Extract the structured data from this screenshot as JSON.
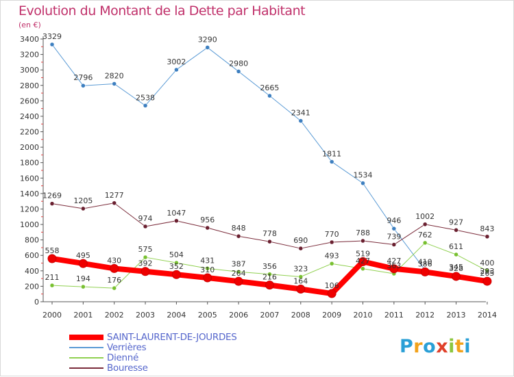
{
  "title": "Evolution du Montant de la Dette par Habitant",
  "unit_label": "(en €)",
  "logo": {
    "letters": [
      "P",
      "r",
      "o",
      "x",
      "i",
      "t",
      "i"
    ],
    "colors": [
      "#2a9fd6",
      "#f2a21b",
      "#2a9fd6",
      "#e0402a",
      "#8cc63f",
      "#f2a21b",
      "#2a9fd6"
    ]
  },
  "chart_data": {
    "type": "line",
    "title": "Evolution du Montant de la Dette par Habitant",
    "ylabel": "(en €)",
    "xlabel": "",
    "ylim": [
      0,
      3400
    ],
    "ytick_step": 200,
    "grid": false,
    "legend_position": "bottom-left",
    "x": [
      "2000",
      "2001",
      "2002",
      "2003",
      "2004",
      "2005",
      "2006",
      "2007",
      "2008",
      "2009",
      "2010",
      "2011",
      "2012",
      "2013",
      "2014"
    ],
    "series": [
      {
        "name": "Verrières",
        "color": "#5b9bd5",
        "marker": "#3d7fc0",
        "width": 1,
        "values": [
          3329,
          2796,
          2820,
          2538,
          3002,
          3290,
          2980,
          2665,
          2341,
          1811,
          1534,
          946,
          410,
          345,
          293
        ]
      },
      {
        "name": "Dienné",
        "color": "#90d050",
        "marker": "#78c030",
        "width": 1,
        "values": [
          211,
          194,
          176,
          575,
          504,
          431,
          387,
          356,
          323,
          493,
          427,
          363,
          762,
          611,
          400
        ]
      },
      {
        "name": "Bouresse",
        "color": "#7a2b3a",
        "marker": "#6a2030",
        "width": 1,
        "values": [
          1269,
          1205,
          1277,
          974,
          1047,
          956,
          848,
          778,
          690,
          770,
          788,
          739,
          1002,
          927,
          843
        ]
      },
      {
        "name": "SAINT-LAURENT-DE-JOURDES",
        "color": "#ff0000",
        "marker": "#ee0000",
        "width": 8,
        "values": [
          558,
          495,
          430,
          392,
          352,
          310,
          264,
          216,
          164,
          106,
          519,
          427,
          386,
          328,
          265
        ]
      }
    ],
    "legend_order": [
      "SAINT-LAURENT-DE-JOURDES",
      "Verrières",
      "Dienné",
      "Bouresse"
    ]
  }
}
